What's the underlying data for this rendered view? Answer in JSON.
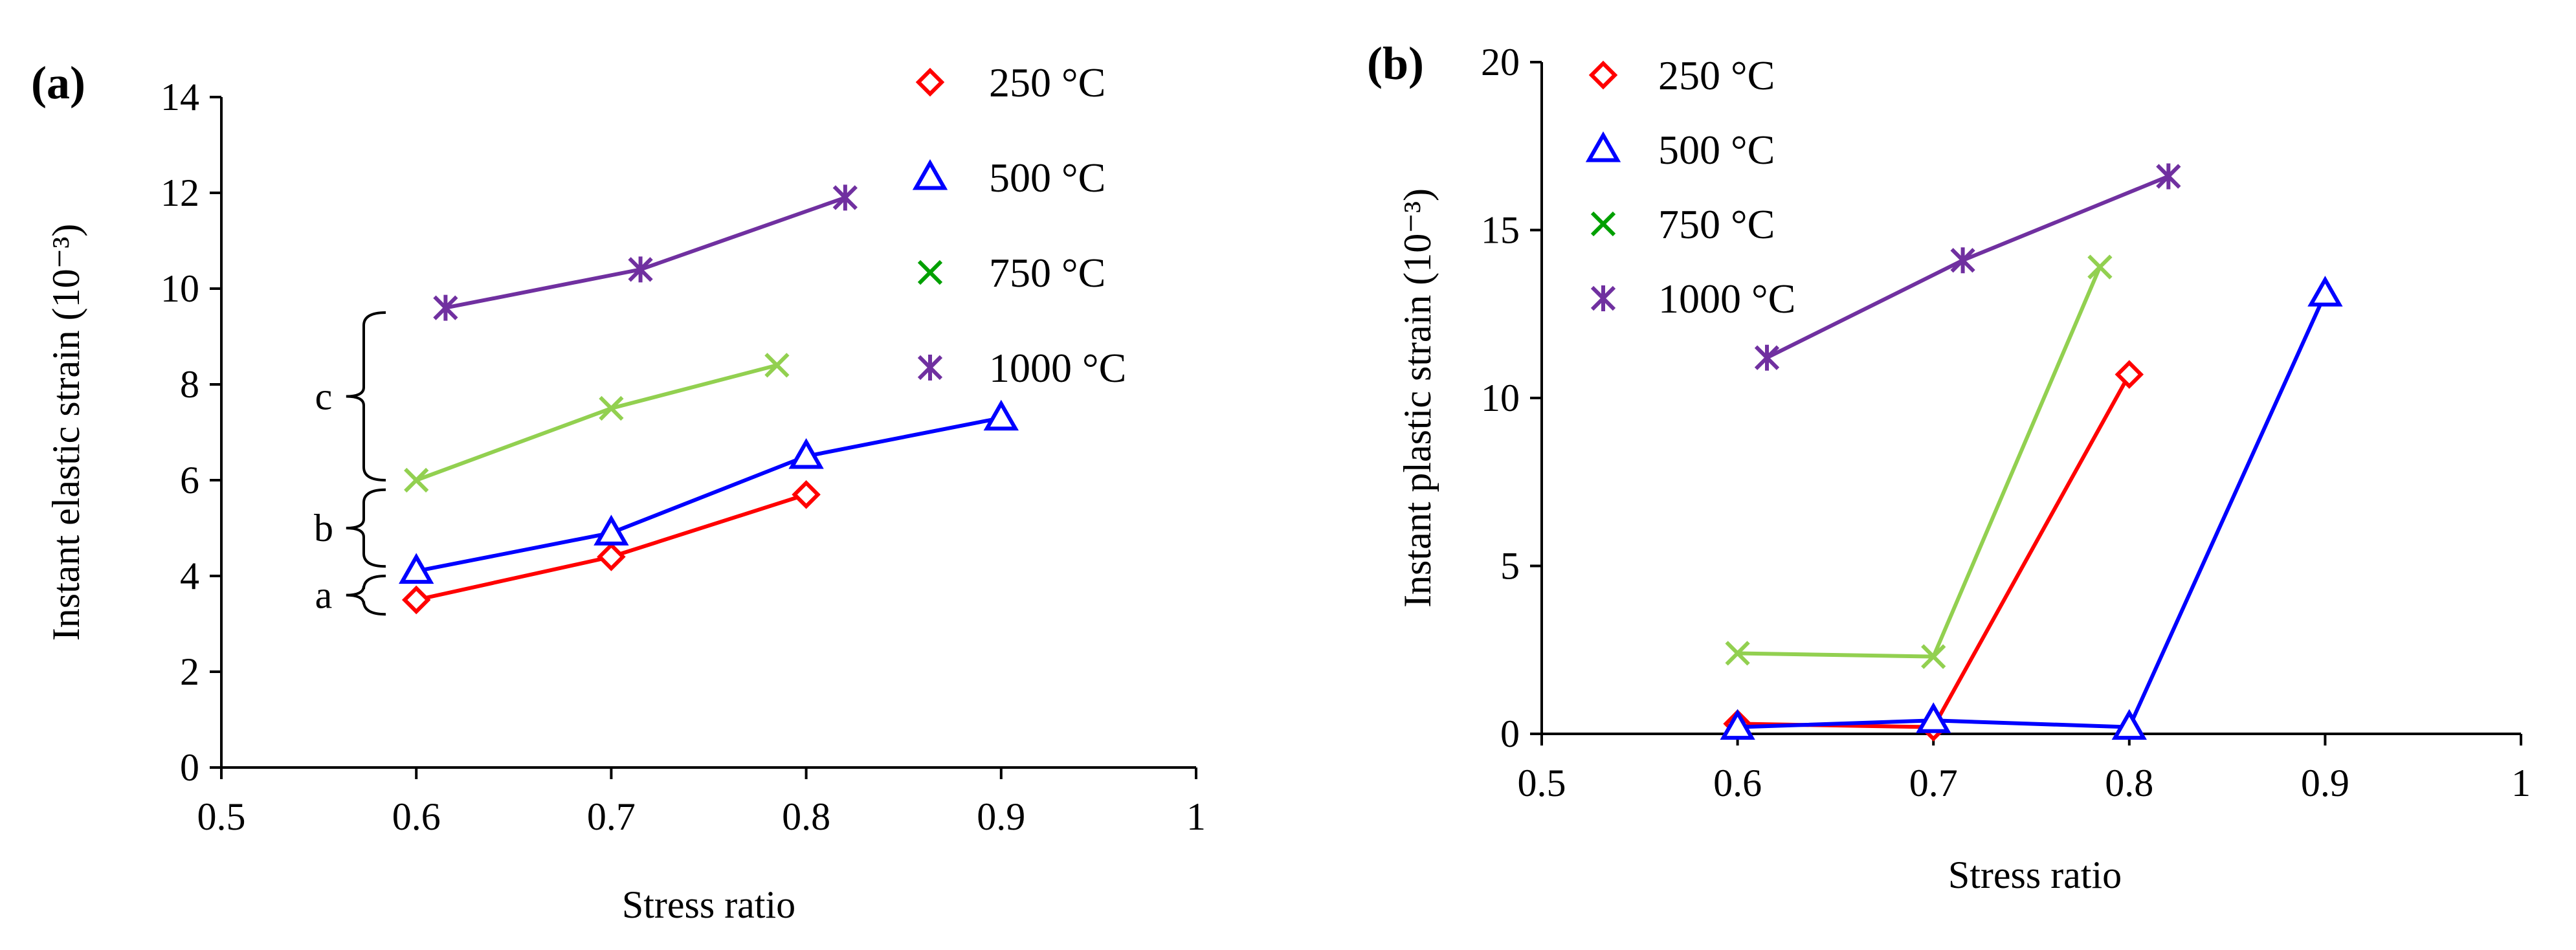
{
  "chart_data": [
    {
      "type": "line",
      "panel_label": "(a)",
      "xlabel": "Stress ratio",
      "ylabel": "Instant elastic strain (10⁻³)",
      "xlim": [
        0.5,
        1
      ],
      "ylim": [
        0,
        14
      ],
      "xticks": [
        "0.5",
        "0.6",
        "0.7",
        "0.8",
        "0.9",
        "1"
      ],
      "yticks": [
        "0",
        "2",
        "4",
        "6",
        "8",
        "10",
        "12",
        "14"
      ],
      "legend_position": "top-right",
      "series": [
        {
          "name": "250 °C",
          "color": "#ff0000",
          "marker": "diamond",
          "x": [
            0.6,
            0.7,
            0.8
          ],
          "y": [
            3.5,
            4.4,
            5.7
          ]
        },
        {
          "name": "500 °C",
          "color": "#0000ff",
          "marker": "triangle",
          "x": [
            0.6,
            0.7,
            0.8,
            0.9
          ],
          "y": [
            4.1,
            4.9,
            6.5,
            7.3
          ]
        },
        {
          "name": "750 °C",
          "color": "#92d050",
          "legend_color": "#00a000",
          "marker": "x",
          "x": [
            0.6,
            0.7,
            0.785
          ],
          "y": [
            6.0,
            7.5,
            8.4
          ]
        },
        {
          "name": "1000 °C",
          "color": "#7030a0",
          "marker": "star",
          "x": [
            0.615,
            0.715,
            0.82
          ],
          "y": [
            9.6,
            10.4,
            11.9
          ]
        }
      ],
      "annotations": [
        {
          "label": "a",
          "from": 3.2,
          "to": 4.0
        },
        {
          "label": "b",
          "from": 4.2,
          "to": 5.8
        },
        {
          "label": "c",
          "from": 6.0,
          "to": 9.5
        }
      ]
    },
    {
      "type": "line",
      "panel_label": "(b)",
      "xlabel": "Stress ratio",
      "ylabel": "Instant plastic strain (10⁻³)",
      "xlim": [
        0.5,
        1
      ],
      "ylim": [
        0,
        20
      ],
      "xticks": [
        "0.5",
        "0.6",
        "0.7",
        "0.8",
        "0.9",
        "1"
      ],
      "yticks": [
        "0",
        "5",
        "10",
        "15",
        "20"
      ],
      "legend_position": "top-left",
      "series": [
        {
          "name": "250 °C",
          "color": "#ff0000",
          "marker": "diamond",
          "x": [
            0.6,
            0.7,
            0.8
          ],
          "y": [
            0.3,
            0.2,
            10.7
          ]
        },
        {
          "name": "500 °C",
          "color": "#0000ff",
          "marker": "triangle",
          "x": [
            0.6,
            0.7,
            0.8,
            0.9
          ],
          "y": [
            0.2,
            0.4,
            0.2,
            13.1
          ]
        },
        {
          "name": "750 °C",
          "color": "#92d050",
          "legend_color": "#00a000",
          "marker": "x",
          "x": [
            0.6,
            0.7,
            0.785
          ],
          "y": [
            2.4,
            2.3,
            13.9
          ]
        },
        {
          "name": "1000 °C",
          "color": "#7030a0",
          "marker": "star",
          "x": [
            0.615,
            0.715,
            0.82
          ],
          "y": [
            11.2,
            14.1,
            16.6
          ]
        }
      ],
      "annotations": []
    }
  ]
}
